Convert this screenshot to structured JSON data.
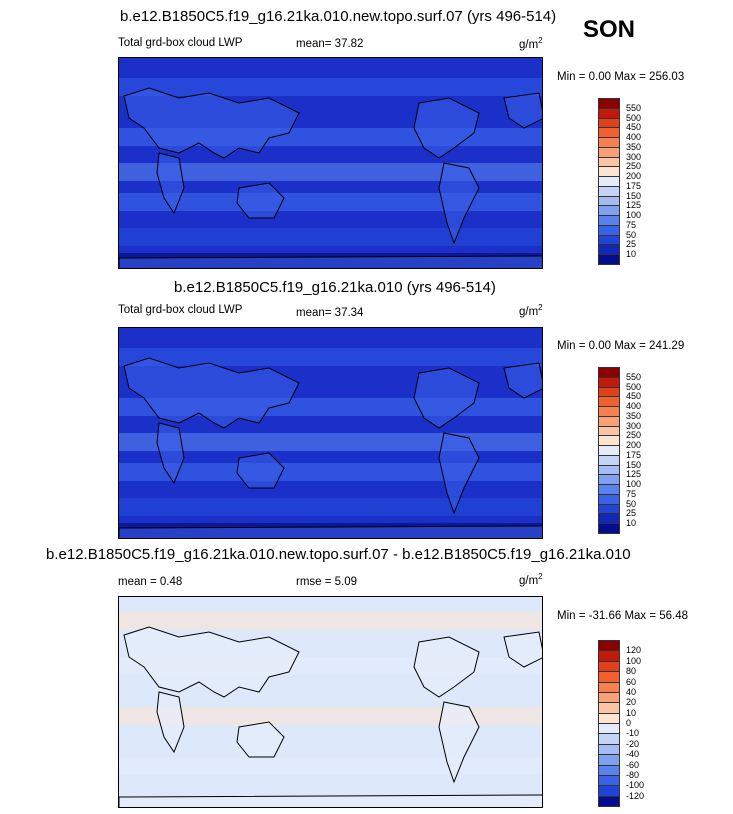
{
  "season": "SON",
  "panels": [
    {
      "title": "b.e12.B1850C5.f19_g16.21ka.010.new.topo.surf.07 (yrs 496-514)",
      "left_label": "Total grd-box cloud LWP",
      "stat1": "mean=  37.82",
      "stat2": "",
      "units": "g/m",
      "units_exp": "2",
      "minmax": "Min =   0.00 Max = 256.03",
      "colorbar_labels": [
        "550",
        "500",
        "450",
        "400",
        "350",
        "300",
        "250",
        "200",
        "175",
        "150",
        "125",
        "100",
        "75",
        "50",
        "25",
        "10"
      ],
      "colorbar_colors": [
        "#8b0000",
        "#c11a0c",
        "#e0401c",
        "#f0602e",
        "#f68050",
        "#f9a078",
        "#fbc4a4",
        "#fde4d0",
        "#e4ecfb",
        "#c4d4f6",
        "#a4bcf2",
        "#7f9ff0",
        "#5a82ef",
        "#3a62e8",
        "#2244d6",
        "#1226b8",
        "#050c8e"
      ]
    },
    {
      "title": "b.e12.B1850C5.f19_g16.21ka.010 (yrs 496-514)",
      "left_label": "Total grd-box cloud LWP",
      "stat1": "mean=  37.34",
      "stat2": "",
      "units": "g/m",
      "units_exp": "2",
      "minmax": "Min =   0.00 Max = 241.29",
      "colorbar_labels": [
        "550",
        "500",
        "450",
        "400",
        "350",
        "300",
        "250",
        "200",
        "175",
        "150",
        "125",
        "100",
        "75",
        "50",
        "25",
        "10"
      ],
      "colorbar_colors": [
        "#8b0000",
        "#c11a0c",
        "#e0401c",
        "#f0602e",
        "#f68050",
        "#f9a078",
        "#fbc4a4",
        "#fde4d0",
        "#e4ecfb",
        "#c4d4f6",
        "#a4bcf2",
        "#7f9ff0",
        "#5a82ef",
        "#3a62e8",
        "#2244d6",
        "#1226b8",
        "#050c8e"
      ]
    },
    {
      "title": "b.e12.B1850C5.f19_g16.21ka.010.new.topo.surf.07 - b.e12.B1850C5.f19_g16.21ka.010",
      "left_label": "mean =   0.48",
      "stat1": "rmse =   5.09",
      "stat2": "",
      "units": "g/m",
      "units_exp": "2",
      "minmax": "Min = -31.66 Max =  56.48",
      "colorbar_labels": [
        "120",
        "100",
        "80",
        "60",
        "40",
        "20",
        "10",
        "0",
        "-10",
        "-20",
        "-40",
        "-60",
        "-80",
        "-100",
        "-120"
      ],
      "colorbar_colors": [
        "#8b0000",
        "#c11a0c",
        "#e0401c",
        "#f0602e",
        "#f68050",
        "#f9a078",
        "#fbc4a4",
        "#fde4d0",
        "#e4ecfb",
        "#c4d4f6",
        "#a4bcf2",
        "#7f9ff0",
        "#5a82ef",
        "#3a62e8",
        "#2244d6",
        "#050c8e"
      ]
    }
  ]
}
